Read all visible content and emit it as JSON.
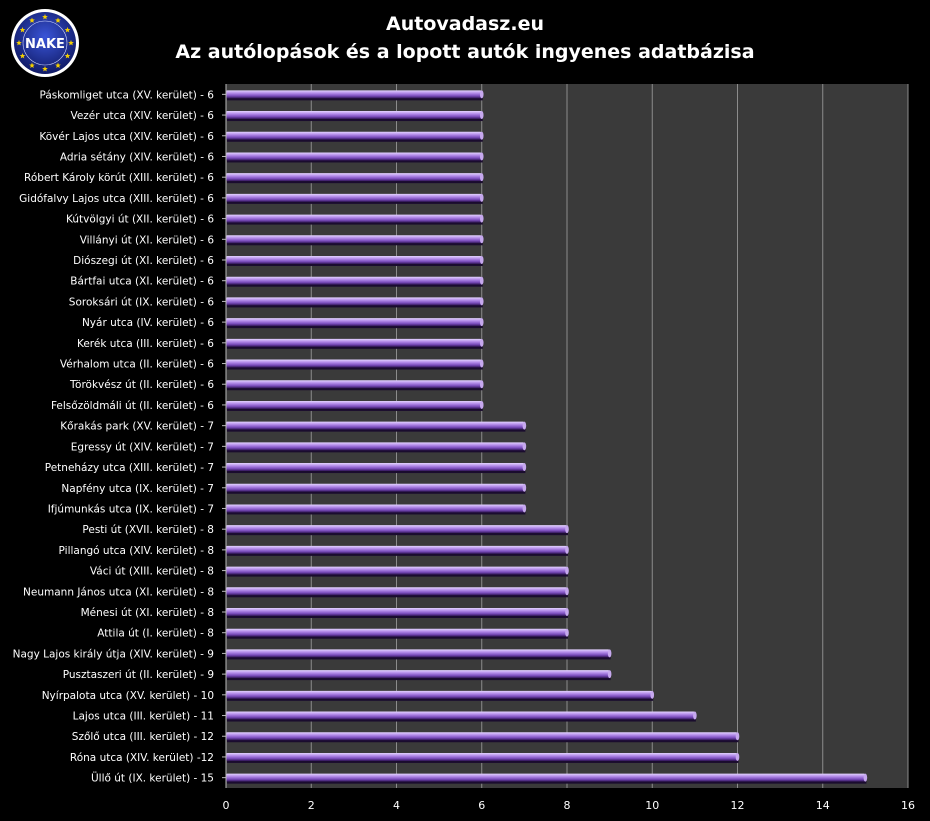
{
  "header": {
    "title": "Autovadasz.eu",
    "subtitle": "Az autólopások és a lopott autók ingyenes adatbázisa"
  },
  "logo": {
    "text": "NAKE",
    "icon": "eu-stars-circle-logo",
    "ring_color": "#1a2a8a",
    "star_color": "#f5d000"
  },
  "colors": {
    "bar_light": "#c6a8ee",
    "bar_mid": "#8a5ccc",
    "bar_dark": "#3d1f6a",
    "plot_bg": "#3a3a3a",
    "grid": "#8c8c8c"
  },
  "chart_data": {
    "type": "bar",
    "orientation": "horizontal",
    "title": "",
    "xlabel": "",
    "ylabel": "",
    "xlim": [
      0,
      16
    ],
    "xticks": [
      0,
      2,
      4,
      6,
      8,
      10,
      12,
      14,
      16
    ],
    "grid": true,
    "categories": [
      "Páskomliget utca (XV. kerület) - 6",
      "Vezér utca (XIV. kerület) - 6",
      "Kövér Lajos utca (XIV. kerület) - 6",
      "Adria sétány (XIV. kerület) - 6",
      "Róbert Károly körút (XIII. kerület) - 6",
      "Gidófalvy Lajos utca (XIII. kerület) - 6",
      "Kútvölgyi út (XII. kerület) - 6",
      "Villányi út (XI. kerület) - 6",
      "Diószegi út (XI. kerület) - 6",
      "Bártfai utca (XI. kerület) - 6",
      "Soroksári út (IX. kerület) - 6",
      "Nyár utca (IV. kerület) - 6",
      "Kerék utca (III. kerület) - 6",
      "Vérhalom utca (II. kerület) - 6",
      "Törökvész út (II. kerület) - 6",
      "Felsőzöldmáli út (II. kerület) - 6",
      "Kőrakás park (XV. kerület) - 7",
      "Egressy út (XIV. kerület) - 7",
      "Petneházy utca (XIII. kerület) - 7",
      "Napfény utca (IX. kerület) - 7",
      "Ifjúmunkás utca (IX. kerület) - 7",
      "Pesti út (XVII. kerület) - 8",
      "Pillangó utca (XIV. kerület) - 8",
      "Váci út (XIII. kerület) - 8",
      "Neumann János utca (XI. kerület) - 8",
      "Ménesi út (XI. kerület) - 8",
      "Attila út (I. kerület) - 8",
      "Nagy Lajos király útja (XIV. kerület) - 9",
      "Pusztaszeri út (II. kerület) - 9",
      "Nyírpalota utca (XV. kerület) - 10",
      "Lajos utca (III. kerület) - 11",
      "Szőlő utca (III. kerület) - 12",
      "Róna utca (XIV. kerület) -12",
      "Üllő út (IX. kerület) - 15"
    ],
    "values": [
      6,
      6,
      6,
      6,
      6,
      6,
      6,
      6,
      6,
      6,
      6,
      6,
      6,
      6,
      6,
      6,
      7,
      7,
      7,
      7,
      7,
      8,
      8,
      8,
      8,
      8,
      8,
      9,
      9,
      10,
      11,
      12,
      12,
      15
    ]
  }
}
